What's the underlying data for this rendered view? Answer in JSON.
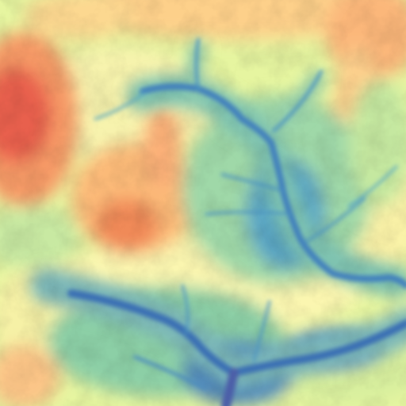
{
  "map": {
    "kind": "elevation-heatmap",
    "colormap": "spectral-reversed",
    "color_stops": [
      "#5e4fa2",
      "#3288bd",
      "#66c2a5",
      "#abdda4",
      "#e6f598",
      "#fee08b",
      "#fdae61",
      "#f46d43",
      "#d53e4f",
      "#9e0142"
    ],
    "legend": "none",
    "axes": "none",
    "labels": "none"
  }
}
